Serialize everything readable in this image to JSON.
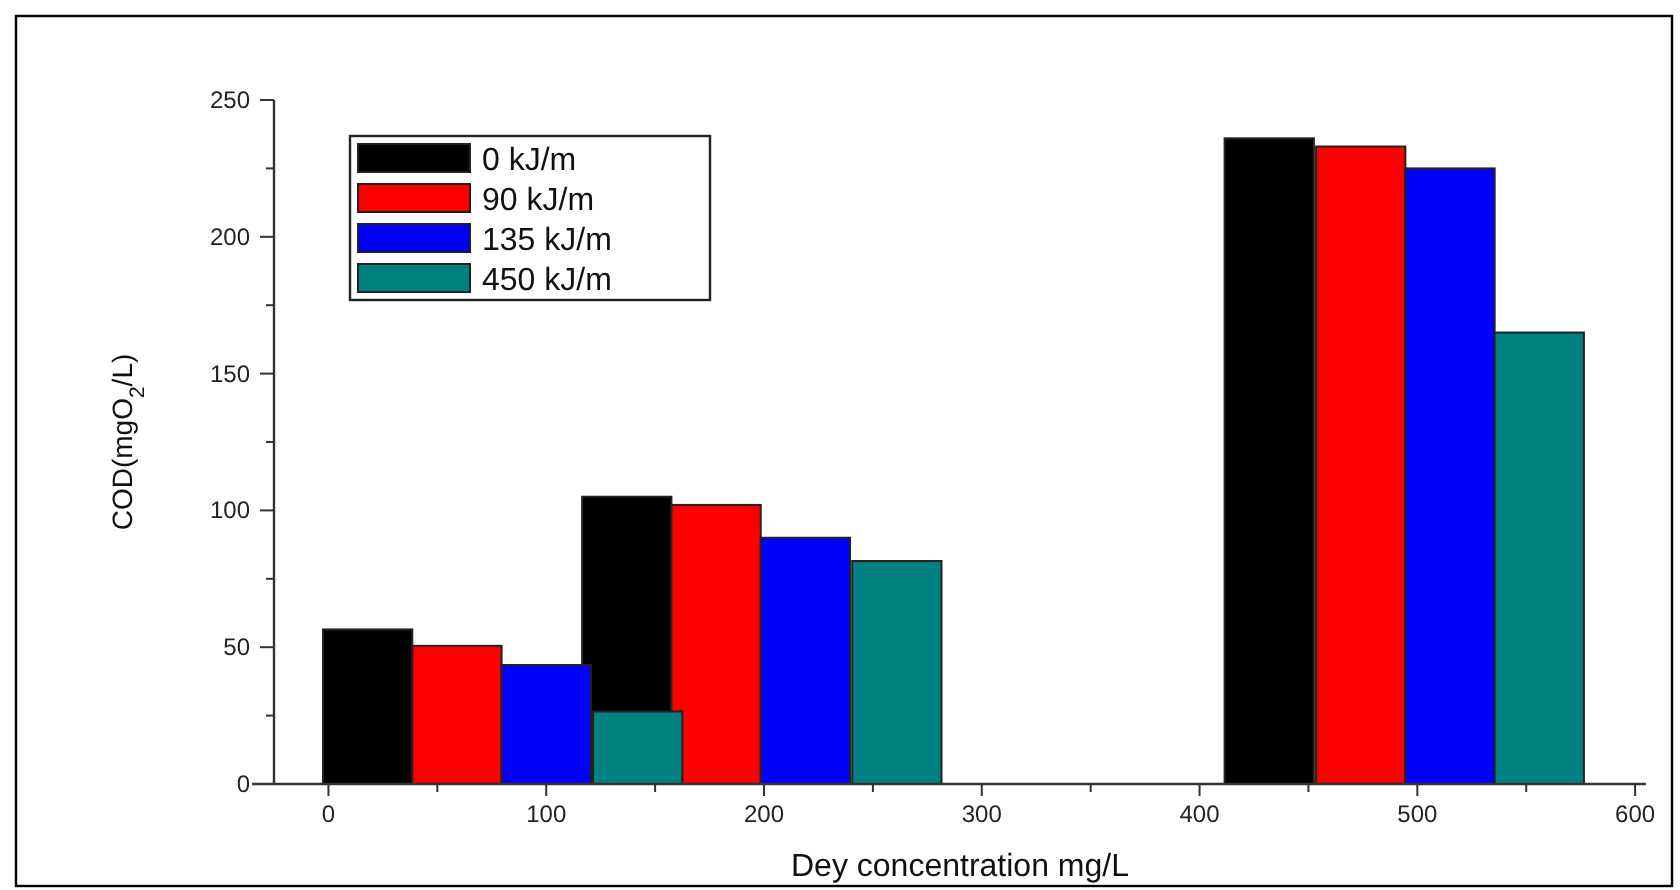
{
  "chart_data": {
    "type": "bar",
    "xlabel": "Dey concentration mg/L",
    "ylabel": "COD(mgO$_{2}$/L)",
    "series": [
      {
        "name": "0 kJ/m",
        "color": "#000000",
        "x": [
          18,
          137,
          432
        ],
        "values": [
          56.5,
          105,
          236
        ]
      },
      {
        "name": "90 kJ/m",
        "color": "#ff0000",
        "x": [
          59,
          178,
          474
        ],
        "values": [
          50.5,
          102,
          233
        ]
      },
      {
        "name": "135 kJ/m",
        "color": "#0000ff",
        "x": [
          100,
          219,
          515
        ],
        "values": [
          43.5,
          90,
          225
        ]
      },
      {
        "name": "450 kJ/m",
        "color": "#008080",
        "x": [
          142,
          261,
          556
        ],
        "values": [
          26.5,
          81.5,
          165
        ]
      }
    ],
    "xlim": [
      -25,
      605
    ],
    "xticks": [
      0,
      {
        "value": 50,
        "label": null
      },
      100,
      {
        "value": 150,
        "label": null
      },
      200,
      {
        "value": 250,
        "label": null
      },
      300,
      {
        "value": 350,
        "label": null
      },
      400,
      {
        "value": 450,
        "label": null
      },
      500,
      {
        "value": 550,
        "label": null
      },
      600
    ],
    "ylim": [
      0,
      250
    ],
    "yticks": [
      0,
      {
        "value": 25,
        "label": null
      },
      50,
      {
        "value": 75,
        "label": null
      },
      100,
      {
        "value": 125,
        "label": null
      },
      150,
      {
        "value": 175,
        "label": null
      },
      200,
      {
        "value": 225,
        "label": null
      },
      250
    ],
    "grid": false,
    "legend": "top left"
  }
}
